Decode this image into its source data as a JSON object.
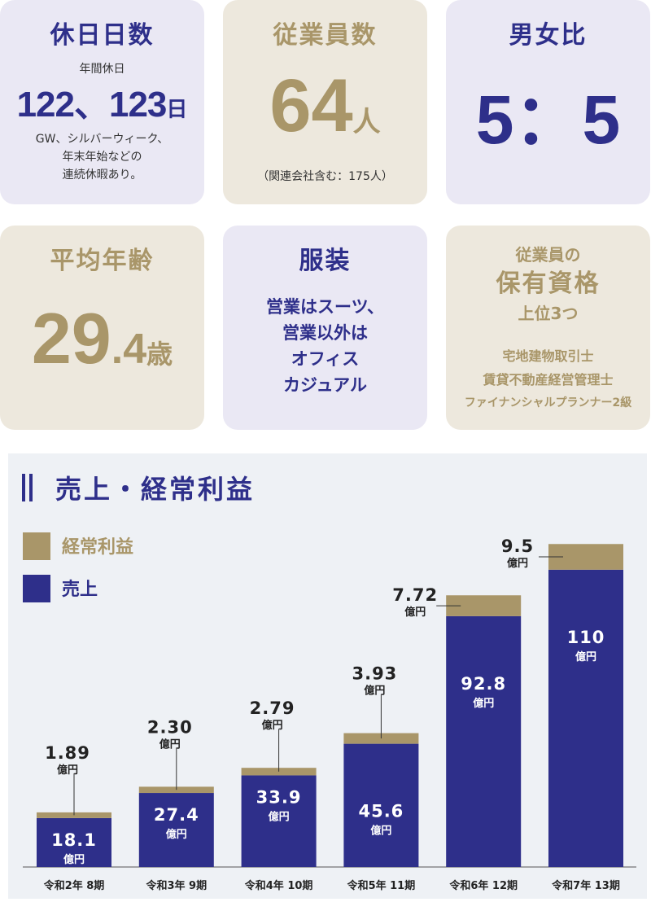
{
  "cards": {
    "holidays": {
      "title": "休日日数",
      "sub": "年間休日",
      "value": "122、123",
      "unit": "日",
      "note": [
        "GW、シルバーウィーク、",
        "年末年始などの",
        "連続休暇あり。"
      ]
    },
    "employees": {
      "title": "従業員数",
      "value": "64",
      "unit": "人",
      "note": "（関連会社含む：175人）"
    },
    "gender": {
      "title": "男女比",
      "value": "5：5"
    },
    "age": {
      "title": "平均年齢",
      "value": "29",
      "value_decimal": ".4",
      "unit": "歳"
    },
    "dress": {
      "title": "服装",
      "lines": [
        "営業はスーツ、",
        "営業以外は",
        "オフィス",
        "カジュアル"
      ]
    },
    "quals": {
      "title_lines": [
        "従業員の",
        "保有資格",
        "上位3つ"
      ],
      "items": [
        "宅地建物取引士",
        "賃貸不動産経営管理士",
        "ファイナンシャルプランナー2級"
      ]
    }
  },
  "colors": {
    "navy": "#2e2f8a",
    "gold": "#a99669",
    "card_purple": "#eae8f4",
    "card_beige": "#ede8dd",
    "chart_bg": "#eef1f5"
  },
  "chart_data": {
    "type": "bar",
    "stacked": true,
    "title": "売上・経常利益",
    "unit": "億円",
    "categories": [
      "令和2年 8期",
      "令和3年 9期",
      "令和4年 10期",
      "令和5年 11期",
      "令和6年 12期",
      "令和7年 13期"
    ],
    "series": [
      {
        "name": "売上",
        "color": "#2e2f8a",
        "values": [
          18.1,
          27.4,
          33.9,
          45.6,
          92.8,
          110
        ],
        "labels": [
          "18.1",
          "27.4",
          "33.9",
          "45.6",
          "92.8",
          "110"
        ]
      },
      {
        "name": "経常利益",
        "color": "#a99669",
        "values": [
          1.89,
          2.3,
          2.79,
          3.93,
          7.72,
          9.5
        ],
        "labels": [
          "1.89",
          "2.30",
          "2.79",
          "3.93",
          "7.72",
          "9.5"
        ]
      }
    ],
    "legend": [
      "経常利益",
      "売上"
    ],
    "legend_position": "top-left"
  }
}
